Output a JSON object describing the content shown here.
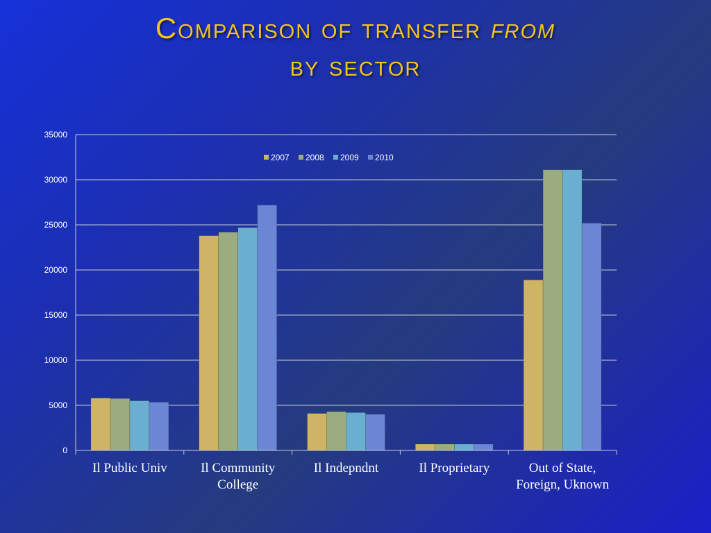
{
  "slide": {
    "title_line1_pre": "Comparison of transfer ",
    "title_line1_em": "from",
    "title_line2": "by sector"
  },
  "chart_data": {
    "type": "bar",
    "categories": [
      [
        "Il Public Univ"
      ],
      [
        "Il Community",
        "College"
      ],
      [
        "Il Indepndnt"
      ],
      [
        "Il Proprietary"
      ],
      [
        "Out of State,",
        "Foreign, Uknown"
      ]
    ],
    "series": [
      {
        "name": "2007",
        "color": "#cdb565",
        "values": [
          5800,
          23800,
          4100,
          700,
          18900
        ]
      },
      {
        "name": "2008",
        "color": "#9aac80",
        "values": [
          5750,
          24200,
          4300,
          700,
          31100
        ]
      },
      {
        "name": "2009",
        "color": "#6aafd0",
        "values": [
          5500,
          24700,
          4200,
          700,
          31100
        ]
      },
      {
        "name": "2010",
        "color": "#6b86d4",
        "values": [
          5350,
          27200,
          4000,
          700,
          25200
        ]
      }
    ],
    "ylim": [
      0,
      35000
    ],
    "yticks": [
      0,
      5000,
      10000,
      15000,
      20000,
      25000,
      30000,
      35000
    ],
    "grid": true,
    "legend_position": "top-center"
  }
}
